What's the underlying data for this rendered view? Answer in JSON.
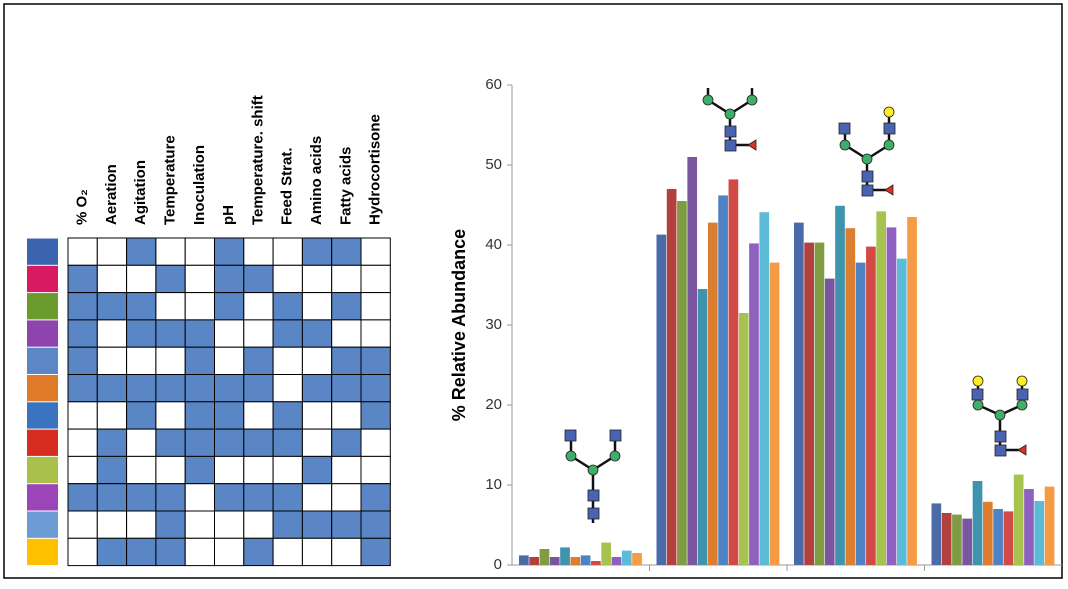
{
  "matrix": {
    "columns": [
      "% O₂",
      "Aeration",
      "Agitation",
      "Temperature",
      "Inoculation",
      "pH",
      "Temperature. shift",
      "Feed Strat.",
      "Amino acids",
      "Fatty acids",
      "Hydrocortisone"
    ],
    "on_color": "#5b86c5",
    "rows": [
      {
        "color": "#3a64ad",
        "cells": [
          false,
          false,
          true,
          false,
          false,
          true,
          false,
          false,
          true,
          true,
          false
        ]
      },
      {
        "color": "#d81b60",
        "cells": [
          true,
          false,
          false,
          true,
          false,
          true,
          true,
          false,
          false,
          false,
          false
        ]
      },
      {
        "color": "#6b9a2d",
        "cells": [
          true,
          true,
          true,
          false,
          false,
          true,
          false,
          true,
          false,
          true,
          false
        ]
      },
      {
        "color": "#8e44ad",
        "cells": [
          true,
          false,
          true,
          true,
          true,
          false,
          false,
          true,
          true,
          false,
          false
        ]
      },
      {
        "color": "#5b87c5",
        "cells": [
          true,
          false,
          false,
          false,
          true,
          false,
          true,
          false,
          false,
          true,
          true
        ]
      },
      {
        "color": "#e07b2a",
        "cells": [
          true,
          true,
          true,
          true,
          true,
          true,
          true,
          false,
          true,
          true,
          true
        ]
      },
      {
        "color": "#3a74c0",
        "cells": [
          false,
          false,
          true,
          false,
          true,
          true,
          false,
          true,
          false,
          false,
          true
        ]
      },
      {
        "color": "#d62d20",
        "cells": [
          false,
          true,
          false,
          true,
          true,
          true,
          true,
          true,
          false,
          true,
          false
        ]
      },
      {
        "color": "#a9c14a",
        "cells": [
          false,
          true,
          false,
          false,
          true,
          false,
          false,
          false,
          true,
          false,
          false
        ]
      },
      {
        "color": "#9b45b8",
        "cells": [
          true,
          true,
          true,
          true,
          false,
          true,
          true,
          true,
          false,
          false,
          true
        ]
      },
      {
        "color": "#6b9bd2",
        "cells": [
          false,
          false,
          false,
          true,
          false,
          false,
          false,
          true,
          true,
          true,
          true
        ]
      },
      {
        "color": "#ffc000",
        "cells": [
          false,
          true,
          true,
          true,
          false,
          false,
          true,
          false,
          false,
          false,
          true
        ]
      }
    ]
  },
  "chart_data": {
    "type": "bar",
    "ylabel": "% Relative Abundance",
    "categories": [
      null,
      null,
      null,
      null
    ],
    "series": [
      {
        "color": "#4a6aa8",
        "values": [
          1.2,
          41.3,
          42.8,
          7.7
        ]
      },
      {
        "color": "#b2413e",
        "values": [
          1.0,
          47.0,
          40.3,
          6.5
        ]
      },
      {
        "color": "#7f9c45",
        "values": [
          2.0,
          45.5,
          40.3,
          6.3
        ]
      },
      {
        "color": "#7a55a0",
        "values": [
          1.0,
          51.0,
          35.8,
          5.8
        ]
      },
      {
        "color": "#3e93ad",
        "values": [
          2.2,
          34.5,
          44.9,
          10.5
        ]
      },
      {
        "color": "#dc7e2f",
        "values": [
          1.0,
          42.8,
          42.1,
          7.9
        ]
      },
      {
        "color": "#4f82c4",
        "values": [
          1.2,
          46.2,
          37.8,
          7.0
        ]
      },
      {
        "color": "#d24a45",
        "values": [
          0.5,
          48.2,
          39.8,
          6.7
        ]
      },
      {
        "color": "#a6c24f",
        "values": [
          2.8,
          31.5,
          44.2,
          11.3
        ]
      },
      {
        "color": "#9060bf",
        "values": [
          1.0,
          40.2,
          42.2,
          9.5
        ]
      },
      {
        "color": "#5cbcd8",
        "values": [
          1.8,
          44.1,
          38.3,
          8.0
        ]
      },
      {
        "color": "#f59a45",
        "values": [
          1.5,
          37.8,
          43.5,
          9.8
        ]
      }
    ],
    "ylim": [
      0,
      60
    ],
    "yticks": [
      0,
      10,
      20,
      30,
      40,
      50,
      60
    ]
  }
}
